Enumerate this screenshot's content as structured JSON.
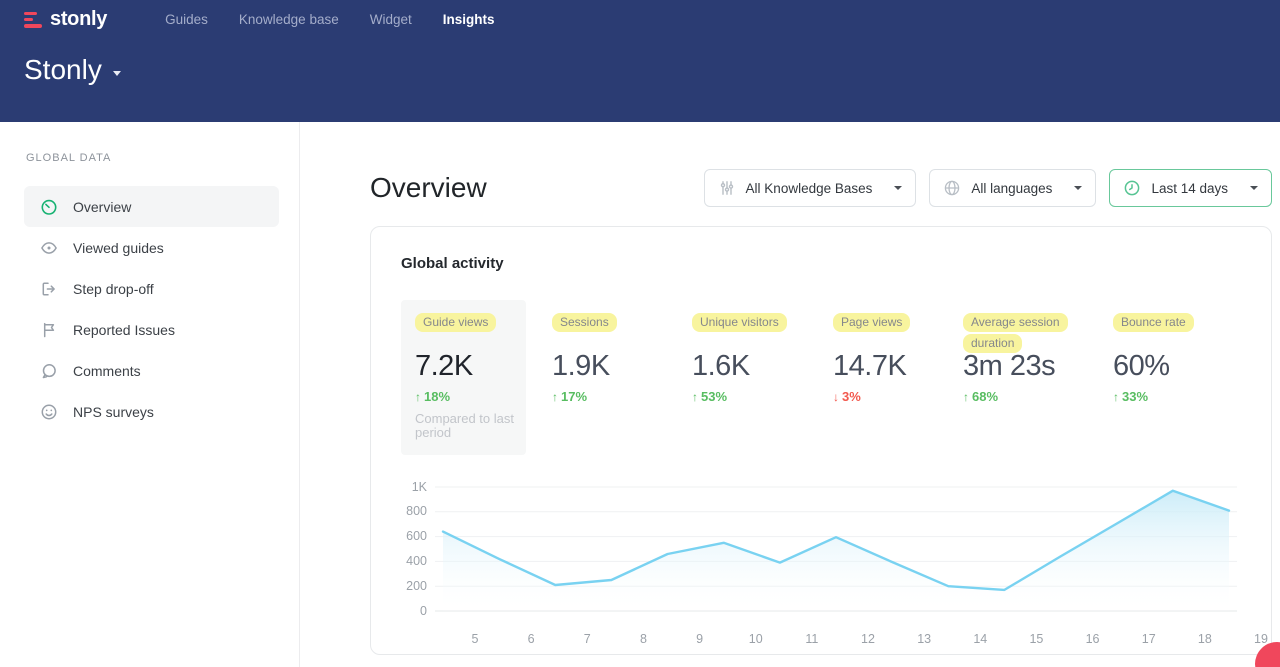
{
  "header": {
    "logo_text": "stonly",
    "nav": [
      {
        "label": "Guides"
      },
      {
        "label": "Knowledge base"
      },
      {
        "label": "Widget"
      },
      {
        "label": "Insights",
        "active": true
      }
    ],
    "workspace_title": "Stonly"
  },
  "sidebar": {
    "section_title": "GLOBAL DATA",
    "items": [
      {
        "label": "Overview",
        "icon": "gauge-icon",
        "active": true
      },
      {
        "label": "Viewed guides",
        "icon": "eye-icon"
      },
      {
        "label": "Step drop-off",
        "icon": "step-out-icon"
      },
      {
        "label": "Reported Issues",
        "icon": "flag-icon"
      },
      {
        "label": "Comments",
        "icon": "comment-icon"
      },
      {
        "label": "NPS surveys",
        "icon": "smiley-icon"
      }
    ]
  },
  "main": {
    "page_title": "Overview",
    "filters": [
      {
        "label": "All Knowledge Bases",
        "icon": "sliders-icon"
      },
      {
        "label": "All languages",
        "icon": "globe-icon"
      },
      {
        "label": "Last 14 days",
        "icon": "clock-icon",
        "active": true
      }
    ],
    "card": {
      "title": "Global activity",
      "metrics": [
        {
          "label": "Guide views",
          "value": "7.2K",
          "arrow": "↑",
          "delta": "18%",
          "direction": "up",
          "note": "Compared to last period",
          "selected": true
        },
        {
          "label": "Sessions",
          "value": "1.9K",
          "arrow": "↑",
          "delta": "17%",
          "direction": "up"
        },
        {
          "label": "Unique visitors",
          "value": "1.6K",
          "arrow": "↑",
          "delta": "53%",
          "direction": "up"
        },
        {
          "label": "Page views",
          "value": "14.7K",
          "arrow": "↓",
          "delta": "3%",
          "direction": "down"
        },
        {
          "label": "Average session duration",
          "value": "3m 23s",
          "arrow": "↑",
          "delta": "68%",
          "direction": "up"
        },
        {
          "label": "Bounce rate",
          "value": "60%",
          "arrow": "↑",
          "delta": "33%",
          "direction": "up"
        }
      ]
    }
  },
  "chart_data": {
    "type": "area",
    "title": "Global activity",
    "x": [
      5,
      6,
      7,
      8,
      9,
      10,
      11,
      12,
      13,
      14,
      15,
      16,
      17,
      18,
      19
    ],
    "values": [
      640,
      420,
      210,
      250,
      460,
      550,
      390,
      595,
      395,
      200,
      170,
      440,
      705,
      970,
      810
    ],
    "xlabel": "",
    "ylabel": "",
    "ylim": [
      0,
      1000
    ],
    "yticks": [
      {
        "value": 0,
        "label": "0"
      },
      {
        "value": 200,
        "label": "200"
      },
      {
        "value": 400,
        "label": "400"
      },
      {
        "value": 600,
        "label": "600"
      },
      {
        "value": 800,
        "label": "800"
      },
      {
        "value": 1000,
        "label": "1K"
      }
    ],
    "grid": true,
    "legend": false,
    "line_color": "#79d2f1",
    "fill_top_color": "#c3e9f7"
  },
  "colors": {
    "header_bg": "#2b3c73",
    "brand_pink": "#f0475c",
    "highlight_yellow": "#f8f49e",
    "positive_green": "#58bd61",
    "negative_red": "#f2594e",
    "filter_active_border": "#69c89b",
    "chart_line": "#79d2f1"
  }
}
